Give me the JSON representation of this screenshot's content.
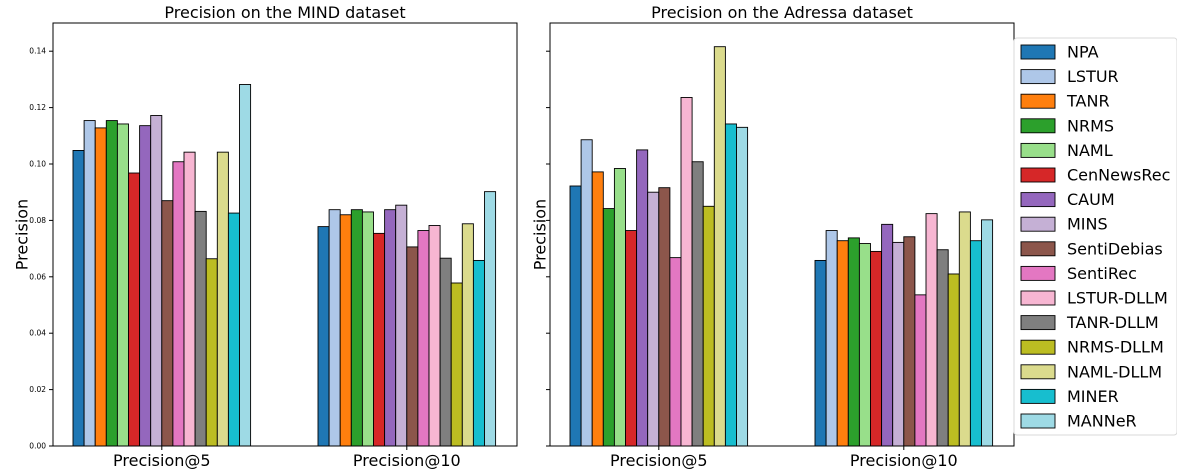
{
  "chart_data": [
    {
      "type": "bar",
      "title": "Precision on the MIND dataset",
      "ylabel": "Precision",
      "xlabel": "",
      "categories": [
        "Precision@5",
        "Precision@10"
      ],
      "ylim": [
        0,
        0.15
      ],
      "yticks": [
        "0.00",
        "0.02",
        "0.04",
        "0.06",
        "0.08",
        "0.10",
        "0.12",
        "0.14"
      ],
      "series": [
        {
          "name": "NPA",
          "values": [
            0.1048,
            0.0778
          ]
        },
        {
          "name": "LSTUR",
          "values": [
            0.1154,
            0.0838
          ]
        },
        {
          "name": "TANR",
          "values": [
            0.1128,
            0.082
          ]
        },
        {
          "name": "NRMS",
          "values": [
            0.1154,
            0.0838
          ]
        },
        {
          "name": "NAML",
          "values": [
            0.1142,
            0.083
          ]
        },
        {
          "name": "CenNewsRec",
          "values": [
            0.0968,
            0.0754
          ]
        },
        {
          "name": "CAUM",
          "values": [
            0.1136,
            0.0838
          ]
        },
        {
          "name": "MINS",
          "values": [
            0.1172,
            0.0854
          ]
        },
        {
          "name": "SentiDebias",
          "values": [
            0.087,
            0.0706
          ]
        },
        {
          "name": "SentiRec",
          "values": [
            0.1008,
            0.0764
          ]
        },
        {
          "name": "LSTUR-DLLM",
          "values": [
            0.1042,
            0.0782
          ]
        },
        {
          "name": "TANR-DLLM",
          "values": [
            0.0832,
            0.0666
          ]
        },
        {
          "name": "NRMS-DLLM",
          "values": [
            0.0664,
            0.0578
          ]
        },
        {
          "name": "NAML-DLLM",
          "values": [
            0.1042,
            0.0788
          ]
        },
        {
          "name": "MINER",
          "values": [
            0.0826,
            0.0658
          ]
        },
        {
          "name": "MANNeR",
          "values": [
            0.1282,
            0.0902
          ]
        }
      ]
    },
    {
      "type": "bar",
      "title": "Precision on the Adressa dataset",
      "ylabel": "Precision",
      "xlabel": "",
      "categories": [
        "Precision@5",
        "Precision@10"
      ],
      "ylim": [
        0,
        0.15
      ],
      "series": [
        {
          "name": "NPA",
          "values": [
            0.0922,
            0.0658
          ]
        },
        {
          "name": "LSTUR",
          "values": [
            0.1086,
            0.0764
          ]
        },
        {
          "name": "TANR",
          "values": [
            0.0972,
            0.0728
          ]
        },
        {
          "name": "NRMS",
          "values": [
            0.0842,
            0.0738
          ]
        },
        {
          "name": "NAML",
          "values": [
            0.0984,
            0.0718
          ]
        },
        {
          "name": "CenNewsRec",
          "values": [
            0.0764,
            0.069
          ]
        },
        {
          "name": "CAUM",
          "values": [
            0.105,
            0.0786
          ]
        },
        {
          "name": "MINS",
          "values": [
            0.09,
            0.0722
          ]
        },
        {
          "name": "SentiDebias",
          "values": [
            0.0916,
            0.0742
          ]
        },
        {
          "name": "SentiRec",
          "values": [
            0.0668,
            0.0536
          ]
        },
        {
          "name": "LSTUR-DLLM",
          "values": [
            0.1236,
            0.0824
          ]
        },
        {
          "name": "TANR-DLLM",
          "values": [
            0.1008,
            0.0696
          ]
        },
        {
          "name": "NRMS-DLLM",
          "values": [
            0.085,
            0.061
          ]
        },
        {
          "name": "NAML-DLLM",
          "values": [
            0.1416,
            0.083
          ]
        },
        {
          "name": "MINER",
          "values": [
            0.1142,
            0.0728
          ]
        },
        {
          "name": "MANNeR",
          "values": [
            0.113,
            0.0802
          ]
        }
      ]
    }
  ],
  "legend": {
    "placement": "right",
    "colors": [
      "#1f77b4",
      "#aec7e8",
      "#ff7f0e",
      "#2ca02c",
      "#98df8a",
      "#d62728",
      "#9467bd",
      "#c5b0d5",
      "#8c564b",
      "#e377c2",
      "#f7b6d2",
      "#7f7f7f",
      "#bcbd22",
      "#dbdb8d",
      "#17becf",
      "#9edae5"
    ]
  },
  "grid": false
}
